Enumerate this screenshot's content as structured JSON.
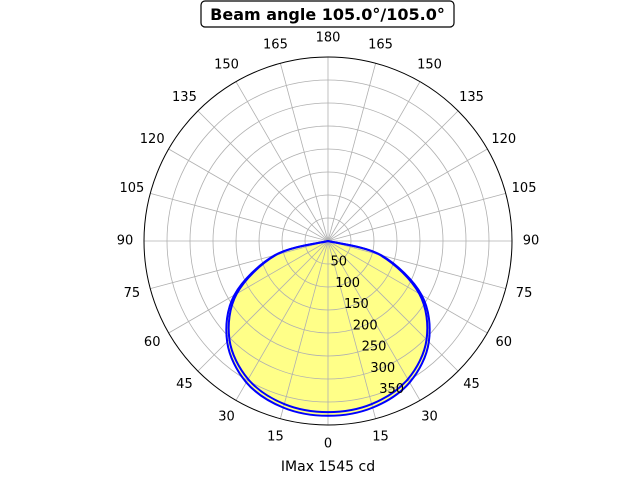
{
  "chart_data": {
    "type": "polar",
    "title": "Beam angle 105.0°/105.0°",
    "xlabel": "IMax 1545 cd",
    "zero_location": "bottom",
    "angle_ticks": [
      "0",
      "15",
      "30",
      "45",
      "60",
      "75",
      "90",
      "105",
      "120",
      "135",
      "150",
      "165",
      "180",
      "165",
      "150",
      "135",
      "120",
      "105",
      "90",
      "75",
      "60",
      "45",
      "30",
      "15"
    ],
    "radial_ticks": [
      "50",
      "100",
      "150",
      "200",
      "250",
      "300",
      "350"
    ],
    "radial_values": [
      50,
      100,
      150,
      200,
      250,
      300,
      350
    ],
    "rmax": 400,
    "grid": true,
    "series": [
      {
        "color": "#0000ff",
        "fill": "#ffff88",
        "angles_deg": [
          0,
          15,
          30,
          45,
          60,
          75,
          90
        ],
        "values": [
          380,
          375,
          355,
          310,
          235,
          120,
          0
        ]
      },
      {
        "color": "#0000ff",
        "angles_deg": [
          0,
          15,
          30,
          45,
          60,
          75,
          90
        ],
        "values": [
          372,
          367,
          347,
          303,
          229,
          117,
          0
        ]
      }
    ]
  }
}
